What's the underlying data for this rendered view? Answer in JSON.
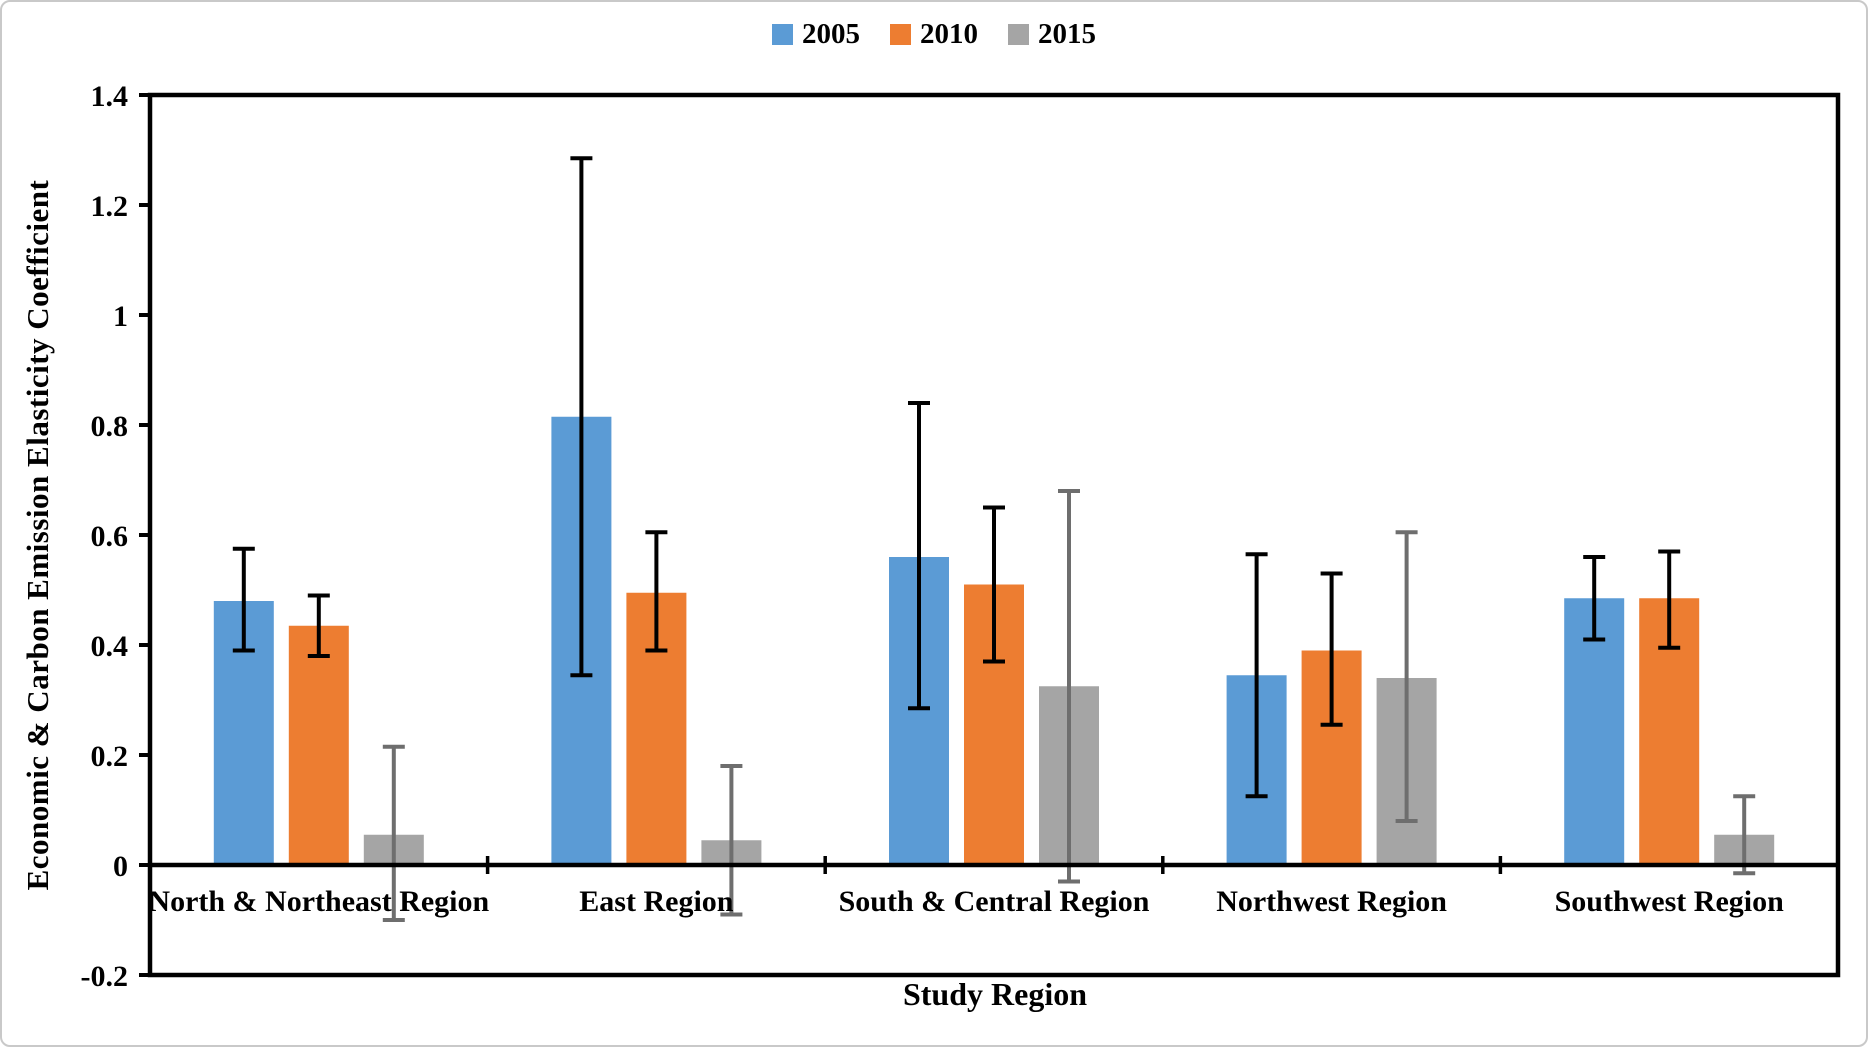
{
  "chart_data": {
    "type": "bar",
    "title": "",
    "xlabel": "Study Region",
    "ylabel": "Economic & Carbon Emission Elasticity Coefficient",
    "categories": [
      "North & Northeast Region",
      "East Region",
      "South & Central Region",
      "Northwest Region",
      "Southwest Region"
    ],
    "series": [
      {
        "name": "2005",
        "color": "#5B9BD5",
        "error_color": "#000000",
        "values": [
          0.48,
          0.815,
          0.56,
          0.345,
          0.485
        ],
        "error_low": [
          0.39,
          0.345,
          0.285,
          0.125,
          0.41
        ],
        "error_high": [
          0.575,
          1.285,
          0.84,
          0.565,
          0.56
        ]
      },
      {
        "name": "2010",
        "color": "#ED7D31",
        "error_color": "#000000",
        "values": [
          0.435,
          0.495,
          0.51,
          0.39,
          0.485
        ],
        "error_low": [
          0.38,
          0.39,
          0.37,
          0.255,
          0.395
        ],
        "error_high": [
          0.49,
          0.605,
          0.65,
          0.53,
          0.57
        ]
      },
      {
        "name": "2015",
        "color": "#A5A5A5",
        "error_color": "#6E6E6E",
        "values": [
          0.055,
          0.045,
          0.325,
          0.34,
          0.055
        ],
        "error_low": [
          -0.1,
          -0.09,
          -0.03,
          0.08,
          -0.015
        ],
        "error_high": [
          0.215,
          0.18,
          0.68,
          0.605,
          0.125
        ]
      }
    ],
    "y_axis": {
      "min": -0.2,
      "max": 1.4,
      "tick_step": 0.2,
      "tick_labels": [
        "-0.2",
        "0",
        "0.2",
        "0.4",
        "0.6",
        "0.8",
        "1",
        "1.2",
        "1.4"
      ]
    },
    "axis_color": "#000000",
    "grid": false,
    "legend_position": "top-center"
  }
}
